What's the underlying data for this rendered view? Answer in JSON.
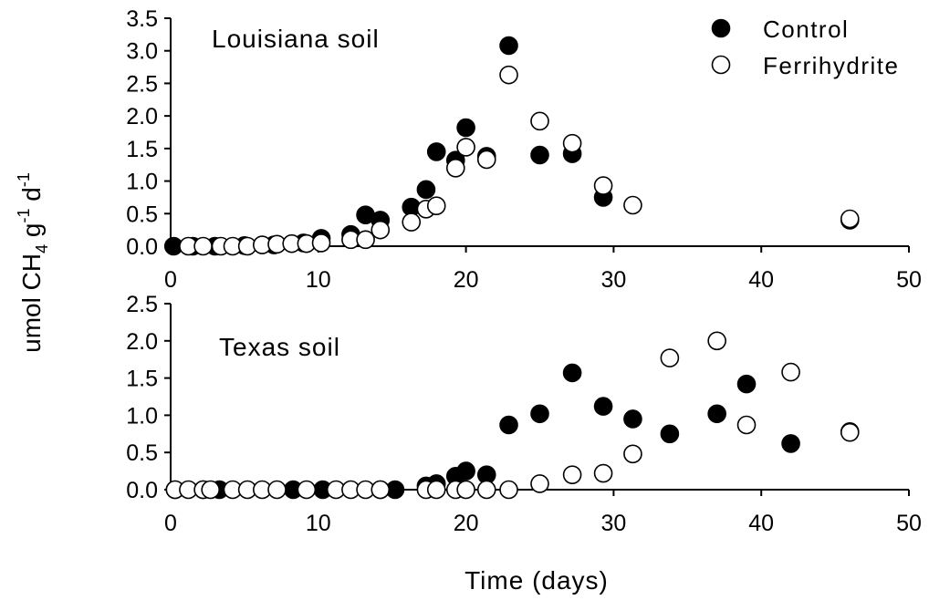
{
  "figure": {
    "ylabel": "umol CH",
    "ylabel_sub": "4",
    "ylabel_g": " g",
    "ylabel_sup1": "-1",
    "ylabel_d": " d",
    "ylabel_sup2": "-1",
    "xlabel": "Time (days)"
  },
  "chart_data": [
    {
      "type": "scatter",
      "title": "Louisiana soil",
      "xlim": [
        0,
        50
      ],
      "ylim": [
        0,
        3.5
      ],
      "xticks": [
        "0",
        "10",
        "20",
        "30",
        "40",
        "50"
      ],
      "yticks": [
        "0.0",
        "0.5",
        "1.0",
        "1.5",
        "2.0",
        "2.5",
        "3.0",
        "3.5"
      ],
      "legend": "top-right",
      "series": [
        {
          "name": "Control",
          "marker": "filled",
          "points": [
            [
              0.2,
              0.0
            ],
            [
              1.5,
              0.0
            ],
            [
              3.0,
              0.0
            ],
            [
              5.0,
              0.01
            ],
            [
              7.0,
              0.02
            ],
            [
              9.0,
              0.05
            ],
            [
              10.2,
              0.12
            ],
            [
              12.2,
              0.18
            ],
            [
              13.2,
              0.48
            ],
            [
              14.2,
              0.4
            ],
            [
              16.3,
              0.6
            ],
            [
              17.3,
              0.87
            ],
            [
              18.0,
              1.45
            ],
            [
              19.3,
              1.32
            ],
            [
              20.0,
              1.82
            ],
            [
              21.4,
              1.38
            ],
            [
              22.9,
              3.08
            ],
            [
              25.0,
              1.4
            ],
            [
              27.2,
              1.42
            ],
            [
              29.3,
              0.75
            ],
            [
              46.0,
              0.4
            ]
          ]
        },
        {
          "name": "Ferrihydrite",
          "marker": "open",
          "points": [
            [
              1.2,
              0.0
            ],
            [
              2.2,
              0.0
            ],
            [
              3.4,
              0.0
            ],
            [
              4.2,
              0.0
            ],
            [
              5.2,
              0.0
            ],
            [
              6.2,
              0.02
            ],
            [
              7.2,
              0.03
            ],
            [
              8.2,
              0.04
            ],
            [
              9.2,
              0.04
            ],
            [
              10.2,
              0.05
            ],
            [
              12.2,
              0.1
            ],
            [
              13.2,
              0.1
            ],
            [
              14.2,
              0.25
            ],
            [
              16.3,
              0.37
            ],
            [
              17.3,
              0.57
            ],
            [
              18.0,
              0.62
            ],
            [
              19.3,
              1.2
            ],
            [
              20.0,
              1.52
            ],
            [
              21.4,
              1.33
            ],
            [
              22.9,
              2.63
            ],
            [
              25.0,
              1.92
            ],
            [
              27.2,
              1.58
            ],
            [
              29.3,
              0.93
            ],
            [
              31.3,
              0.63
            ],
            [
              46.0,
              0.42
            ]
          ]
        }
      ]
    },
    {
      "type": "scatter",
      "title": "Texas soil",
      "xlim": [
        0,
        50
      ],
      "ylim": [
        0,
        2.5
      ],
      "xticks": [
        "0",
        "10",
        "20",
        "30",
        "40",
        "50"
      ],
      "yticks": [
        "0.0",
        "0.5",
        "1.0",
        "1.5",
        "2.0",
        "2.5"
      ],
      "series": [
        {
          "name": "Control",
          "marker": "filled",
          "points": [
            [
              0.3,
              0.0
            ],
            [
              2.2,
              0.0
            ],
            [
              3.3,
              0.0
            ],
            [
              8.3,
              0.0
            ],
            [
              10.3,
              0.0
            ],
            [
              14.2,
              0.0
            ],
            [
              15.2,
              0.0
            ],
            [
              17.3,
              0.05
            ],
            [
              18.0,
              0.08
            ],
            [
              19.3,
              0.18
            ],
            [
              20.0,
              0.25
            ],
            [
              21.4,
              0.2
            ],
            [
              22.9,
              0.87
            ],
            [
              25.0,
              1.02
            ],
            [
              27.2,
              1.57
            ],
            [
              29.3,
              1.12
            ],
            [
              31.3,
              0.95
            ],
            [
              33.8,
              0.75
            ],
            [
              37.0,
              1.02
            ],
            [
              39.0,
              1.42
            ],
            [
              42.0,
              0.62
            ],
            [
              46.0,
              0.78
            ]
          ]
        },
        {
          "name": "Ferrihydrite",
          "marker": "open",
          "points": [
            [
              0.3,
              0.0
            ],
            [
              1.2,
              0.0
            ],
            [
              2.2,
              0.0
            ],
            [
              2.7,
              0.0
            ],
            [
              4.2,
              0.0
            ],
            [
              5.2,
              0.0
            ],
            [
              6.2,
              0.0
            ],
            [
              7.2,
              0.0
            ],
            [
              9.2,
              0.0
            ],
            [
              11.2,
              0.0
            ],
            [
              12.2,
              0.0
            ],
            [
              13.2,
              0.0
            ],
            [
              14.2,
              0.0
            ],
            [
              17.3,
              0.0
            ],
            [
              18.0,
              0.0
            ],
            [
              19.3,
              0.0
            ],
            [
              20.0,
              0.0
            ],
            [
              21.4,
              0.0
            ],
            [
              22.9,
              0.0
            ],
            [
              25.0,
              0.08
            ],
            [
              27.2,
              0.2
            ],
            [
              29.3,
              0.22
            ],
            [
              31.3,
              0.48
            ],
            [
              33.8,
              1.77
            ],
            [
              37.0,
              2.0
            ],
            [
              39.0,
              0.87
            ],
            [
              42.0,
              1.58
            ],
            [
              46.0,
              0.77
            ]
          ]
        }
      ]
    }
  ]
}
